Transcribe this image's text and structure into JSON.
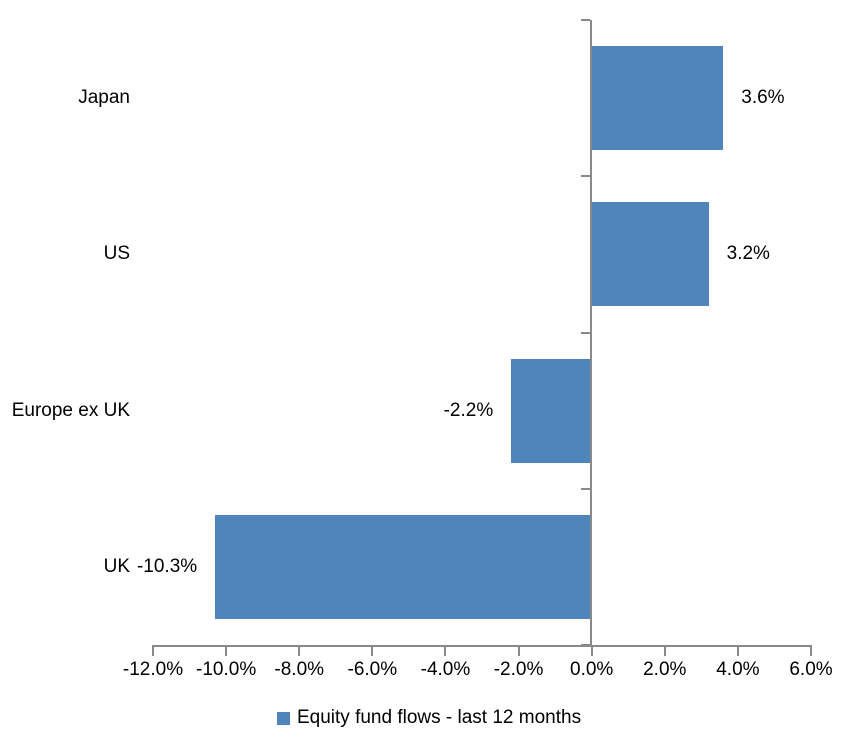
{
  "chart_data": {
    "type": "bar",
    "orientation": "horizontal",
    "title": "",
    "categories": [
      "Japan",
      "US",
      "Europe ex UK",
      "UK"
    ],
    "values": [
      3.6,
      3.2,
      -2.2,
      -10.3
    ],
    "data_labels": [
      "3.6%",
      "3.2%",
      "-2.2%",
      "-10.3%"
    ],
    "xlim": [
      -12,
      6
    ],
    "x_ticks": [
      -12,
      -10,
      -8,
      -6,
      -4,
      -2,
      0,
      2,
      4,
      6
    ],
    "x_tick_labels": [
      "-12.0%",
      "-10.0%",
      "-8.0%",
      "-6.0%",
      "-4.0%",
      "-2.0%",
      "0.0%",
      "2.0%",
      "4.0%",
      "6.0%"
    ],
    "grid": false,
    "legend_position": "bottom",
    "legend": [
      {
        "label": "Equity fund flows - last 12 months",
        "color": "#4E86BC"
      }
    ],
    "colors": {
      "bar": "#4E86BC",
      "axis": "#898989",
      "text": "#000000",
      "background": "#FFFFFF"
    }
  }
}
